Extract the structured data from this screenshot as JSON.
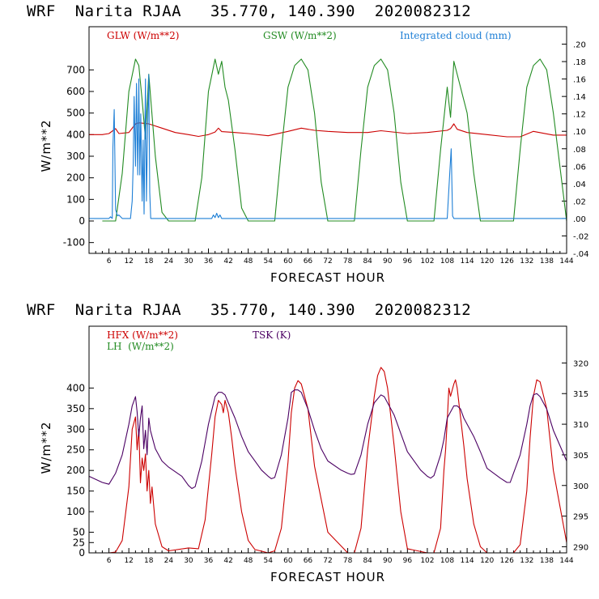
{
  "chart_data": [
    {
      "type": "line",
      "title": "WRF  Narita RJAA   35.770, 140.390  2020082312",
      "xlabel": "FORECAST HOUR",
      "ylabel": "W/m**2",
      "xlim": [
        0,
        144
      ],
      "ylim": [
        -150,
        900
      ],
      "y2lim": [
        -0.04,
        0.22
      ],
      "x_ticks": [
        6,
        12,
        18,
        24,
        30,
        36,
        42,
        48,
        54,
        60,
        66,
        72,
        78,
        84,
        90,
        96,
        102,
        108,
        114,
        120,
        126,
        132,
        138,
        144
      ],
      "y_ticks": [
        -100,
        0,
        100,
        200,
        300,
        400,
        500,
        600,
        700
      ],
      "y2_ticks": [
        ".20",
        ".18",
        ".16",
        ".14",
        ".12",
        ".10",
        ".08",
        ".06",
        ".04",
        ".02",
        ".00",
        "-.02",
        "-.04"
      ],
      "y2_values": [
        0.2,
        0.18,
        0.16,
        0.14,
        0.12,
        0.1,
        0.08,
        0.06,
        0.04,
        0.02,
        0.0,
        -0.02,
        -0.04
      ],
      "series": [
        {
          "name": "GLW (W/m**2)",
          "color": "#cc0000",
          "axis": "left",
          "x": [
            0,
            4,
            6,
            8,
            9,
            12,
            14,
            15,
            18,
            22,
            26,
            30,
            33,
            36,
            38,
            39,
            40,
            44,
            48,
            54,
            60,
            64,
            68,
            72,
            78,
            84,
            88,
            96,
            102,
            108,
            109,
            110,
            111,
            114,
            120,
            126,
            130,
            134,
            140,
            144
          ],
          "y": [
            400,
            400,
            405,
            428,
            405,
            410,
            450,
            455,
            450,
            430,
            410,
            400,
            392,
            400,
            412,
            430,
            414,
            410,
            405,
            395,
            415,
            430,
            420,
            415,
            410,
            410,
            418,
            405,
            410,
            420,
            428,
            450,
            425,
            410,
            400,
            390,
            390,
            415,
            398,
            398
          ]
        },
        {
          "name": "GSW (W/m**2)",
          "color": "#228b22",
          "axis": "left",
          "x": [
            4,
            6,
            8,
            10,
            12,
            14,
            15,
            16,
            17,
            18,
            20,
            22,
            24,
            30,
            32,
            34,
            36,
            38,
            39,
            40,
            41,
            42,
            44,
            46,
            48,
            54,
            56,
            58,
            60,
            62,
            64,
            66,
            68,
            70,
            72,
            78,
            80,
            82,
            84,
            86,
            88,
            90,
            92,
            94,
            96,
            102,
            104,
            106,
            108,
            109,
            110,
            111,
            112,
            114,
            116,
            118,
            120,
            126,
            128,
            130,
            132,
            134,
            136,
            138,
            140,
            144
          ],
          "y": [
            0,
            0,
            0,
            220,
            600,
            750,
            720,
            560,
            380,
            680,
            300,
            40,
            0,
            0,
            0,
            200,
            600,
            750,
            680,
            740,
            620,
            560,
            330,
            60,
            0,
            0,
            0,
            330,
            620,
            720,
            750,
            700,
            500,
            180,
            0,
            0,
            0,
            330,
            620,
            720,
            750,
            700,
            500,
            180,
            0,
            0,
            0,
            330,
            620,
            480,
            740,
            680,
            620,
            500,
            220,
            0,
            0,
            0,
            0,
            330,
            620,
            720,
            750,
            700,
            500,
            0
          ]
        },
        {
          "name": "Integrated cloud (mm)",
          "color": "#1e7fd6",
          "axis": "right",
          "x": [
            0,
            6,
            6.5,
            7,
            7.2,
            7.6,
            8,
            8.6,
            9,
            10,
            12.5,
            13,
            13.3,
            13.6,
            14,
            14.3,
            14.7,
            15,
            15.3,
            15.6,
            16,
            16.3,
            16.6,
            17,
            17.3,
            17.6,
            18,
            18.3,
            18.6,
            20,
            24,
            37,
            37.5,
            38,
            38.5,
            39,
            39.5,
            40,
            60,
            108,
            108.8,
            109.2,
            109.6,
            110,
            144
          ],
          "y": [
            0,
            0,
            0.002,
            0,
            0.082,
            0.125,
            0.01,
            0.003,
            0.004,
            0,
            0,
            0.02,
            0.06,
            0.14,
            0.06,
            0.155,
            0.05,
            0.16,
            0.05,
            0.12,
            0.02,
            0.09,
            0.005,
            0.16,
            0.02,
            0.09,
            0.165,
            0.03,
            0,
            0,
            0,
            0,
            0.004,
            0.001,
            0.006,
            0.001,
            0.004,
            0,
            0,
            0,
            0.055,
            0.08,
            0.003,
            0,
            0
          ]
        }
      ]
    },
    {
      "type": "line",
      "title": "WRF  Narita RJAA   35.770, 140.390  2020082312",
      "xlabel": "FORECAST HOUR",
      "ylabel": "W/m**2",
      "xlim": [
        0,
        144
      ],
      "ylim": [
        0,
        550
      ],
      "y2lim": [
        289,
        326
      ],
      "x_ticks": [
        6,
        12,
        18,
        24,
        30,
        36,
        42,
        48,
        54,
        60,
        66,
        72,
        78,
        84,
        90,
        96,
        102,
        108,
        114,
        120,
        126,
        132,
        138,
        144
      ],
      "y_ticks": [
        0,
        25,
        50,
        100,
        150,
        200,
        250,
        300,
        350,
        400
      ],
      "y2_ticks": [
        290,
        295,
        300,
        305,
        310,
        315,
        320
      ],
      "series": [
        {
          "name": "HFX (W/m**2)",
          "color": "#cc0000",
          "axis": "left",
          "x": [
            0,
            6,
            8,
            10,
            12,
            13,
            14,
            14.5,
            15,
            15.5,
            16,
            16.5,
            17,
            17.5,
            18,
            18.5,
            19,
            20,
            22,
            24,
            30,
            33,
            35,
            37,
            38,
            39,
            40,
            40.5,
            41,
            42,
            43,
            44,
            46,
            48,
            50,
            54,
            56,
            58,
            60,
            61,
            62,
            63,
            64,
            66,
            68,
            72,
            78,
            80,
            82,
            84,
            86,
            87,
            88,
            89,
            90,
            92,
            94,
            96,
            102,
            104,
            106,
            107,
            107.5,
            108,
            108.5,
            109,
            110,
            110.5,
            111,
            112,
            113,
            114,
            116,
            118,
            120,
            126,
            128,
            130,
            132,
            133,
            134,
            135,
            136,
            138,
            140,
            144
          ],
          "y": [
            0,
            0,
            2,
            30,
            160,
            300,
            330,
            250,
            300,
            170,
            230,
            200,
            240,
            150,
            200,
            120,
            160,
            70,
            15,
            5,
            12,
            10,
            80,
            240,
            330,
            370,
            360,
            340,
            370,
            340,
            280,
            210,
            100,
            30,
            8,
            0,
            5,
            60,
            220,
            340,
            400,
            418,
            410,
            350,
            210,
            50,
            0,
            0,
            60,
            250,
            380,
            430,
            450,
            440,
            400,
            260,
            100,
            10,
            0,
            0,
            60,
            200,
            250,
            320,
            400,
            380,
            410,
            420,
            400,
            330,
            260,
            180,
            70,
            15,
            0,
            0,
            0,
            20,
            150,
            280,
            380,
            420,
            415,
            350,
            200,
            25
          ]
        },
        {
          "name": "LH  (W/m**2)",
          "color": "#228b22",
          "axis": "left",
          "x": [],
          "y": []
        },
        {
          "name": "TSK (K)",
          "color": "#4b0063",
          "axis": "right",
          "x": [
            0,
            4,
            6,
            8,
            10,
            12,
            13,
            14,
            14.5,
            15,
            15.5,
            16,
            16.5,
            17,
            17.5,
            18,
            18.5,
            19,
            20,
            22,
            24,
            28,
            30,
            31,
            32,
            34,
            36,
            38,
            39,
            40,
            41,
            42,
            44,
            46,
            48,
            52,
            54,
            55,
            56,
            58,
            60,
            61,
            62,
            63,
            64,
            66,
            68,
            70,
            72,
            76,
            78,
            79,
            80,
            82,
            84,
            86,
            88,
            89,
            90,
            92,
            94,
            96,
            100,
            102,
            103,
            104,
            106,
            107,
            108,
            109,
            110,
            111,
            112,
            113,
            114,
            116,
            118,
            120,
            124,
            126,
            127,
            128,
            130,
            132,
            133,
            134,
            135,
            136,
            138,
            140,
            144
          ],
          "y": [
            301.5,
            300.5,
            300.2,
            302,
            305,
            310,
            313,
            314.5,
            312,
            308,
            311,
            313,
            306,
            309,
            305,
            311,
            309,
            308,
            306,
            304,
            303,
            301.5,
            300,
            299.5,
            299.8,
            304,
            310,
            314.5,
            315.2,
            315.2,
            314.8,
            313.5,
            311,
            308,
            305.5,
            302.5,
            301.5,
            301.1,
            301.3,
            305,
            311,
            315.2,
            315.6,
            315.6,
            315.2,
            312.5,
            309,
            306,
            304,
            302.5,
            302,
            301.8,
            301.9,
            305,
            310,
            313.5,
            314.8,
            314.5,
            313.5,
            311.5,
            308.5,
            305.5,
            302.5,
            301.5,
            301.2,
            301.6,
            305,
            307.5,
            311,
            312,
            313,
            313,
            312.5,
            311,
            310,
            308,
            305.5,
            302.8,
            301.2,
            300.5,
            300.5,
            302,
            305,
            310,
            313,
            314.8,
            315,
            314.5,
            312.5,
            309,
            304
          ]
        }
      ]
    }
  ]
}
